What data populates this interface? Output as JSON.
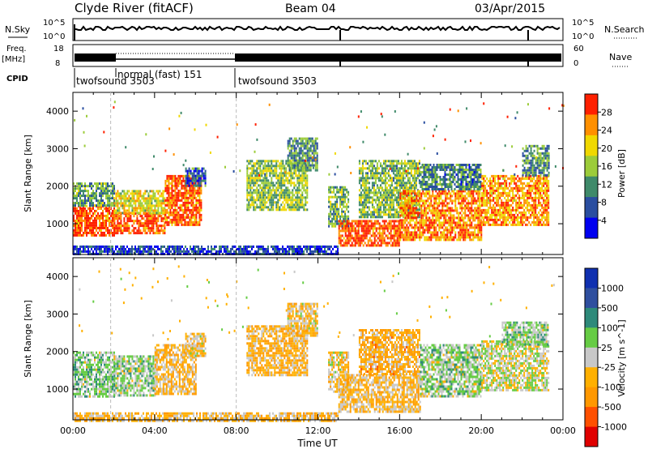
{
  "header": {
    "title": "Clyde River (fitACF)",
    "beam": "Beam 04",
    "date": "03/Apr/2015"
  },
  "top_panels": {
    "nsky_label": "N.Sky",
    "nsky_ticks": [
      "10^5",
      "10^0"
    ],
    "nsearch_label": "N.Search",
    "freq_label": "Freq.",
    "freq_unit": "[MHz]",
    "freq_ticks": [
      "18",
      "8"
    ],
    "nave_label": "Nave",
    "nave_ticks": [
      "60",
      "0"
    ],
    "cpid_label": "CPID",
    "cpid_segments": [
      {
        "label": "twofsound 3503",
        "start_h": 0.0,
        "end_h": 1.85
      },
      {
        "label": "normal (fast) 151",
        "start_h": 1.85,
        "end_h": 8.0
      },
      {
        "label": "twofsound 3503",
        "start_h": 8.0,
        "end_h": 24.0
      }
    ]
  },
  "chart_data": [
    {
      "type": "heatmap",
      "panel": "power",
      "xlabel": "",
      "ylabel": "Slant Range [km]",
      "xlim": [
        0,
        24
      ],
      "ylim": [
        180,
        4500
      ],
      "yticks": [
        1000,
        2000,
        3000,
        4000
      ],
      "colorbar": {
        "label": "Power [dB]",
        "ticks": [
          "28",
          "24",
          "20",
          "16",
          "12",
          "8",
          "4"
        ],
        "range": [
          0,
          30
        ],
        "colors": [
          "#0000f0",
          "#2a4ea0",
          "#3f8a6a",
          "#9ccc3a",
          "#f0d800",
          "#ff9000",
          "#ff2000"
        ]
      },
      "regions": [
        {
          "t0": 0.0,
          "t1": 2.0,
          "r0": 700,
          "r1": 1500,
          "level": 27
        },
        {
          "t0": 0.0,
          "t1": 2.0,
          "r0": 1500,
          "r1": 2100,
          "level": 12
        },
        {
          "t0": 2.0,
          "t1": 4.5,
          "r0": 750,
          "r1": 1300,
          "level": 27
        },
        {
          "t0": 2.0,
          "t1": 4.5,
          "r0": 1300,
          "r1": 1900,
          "level": 18
        },
        {
          "t0": 4.5,
          "t1": 6.3,
          "r0": 1000,
          "r1": 2300,
          "level": 26
        },
        {
          "t0": 5.5,
          "t1": 6.5,
          "r0": 2000,
          "r1": 2500,
          "level": 8
        },
        {
          "t0": 8.5,
          "t1": 11.5,
          "r0": 1400,
          "r1": 2700,
          "level": 15
        },
        {
          "t0": 10.5,
          "t1": 12.0,
          "r0": 2400,
          "r1": 3300,
          "level": 11
        },
        {
          "t0": 12.5,
          "t1": 13.5,
          "r0": 900,
          "r1": 2000,
          "level": 13
        },
        {
          "t0": 13.0,
          "t1": 16.0,
          "r0": 400,
          "r1": 1100,
          "level": 27
        },
        {
          "t0": 14.0,
          "t1": 17.0,
          "r0": 1200,
          "r1": 2700,
          "level": 14
        },
        {
          "t0": 16.0,
          "t1": 20.0,
          "r0": 600,
          "r1": 1900,
          "level": 24
        },
        {
          "t0": 17.0,
          "t1": 20.0,
          "r0": 1900,
          "r1": 2600,
          "level": 10
        },
        {
          "t0": 20.0,
          "t1": 23.3,
          "r0": 1000,
          "r1": 2300,
          "level": 23
        },
        {
          "t0": 22.0,
          "t1": 23.3,
          "r0": 2300,
          "r1": 3100,
          "level": 11
        },
        {
          "t0": 0.0,
          "t1": 13.0,
          "r0": 180,
          "r1": 420,
          "level": 5
        }
      ]
    },
    {
      "type": "heatmap",
      "panel": "velocity",
      "xlabel": "Time UT",
      "ylabel": "Slant Range [km]",
      "xlim": [
        0,
        24
      ],
      "ylim": [
        180,
        4500
      ],
      "yticks": [
        1000,
        2000,
        3000,
        4000
      ],
      "xticks": [
        "00:00",
        "04:00",
        "08:00",
        "12:00",
        "16:00",
        "20:00",
        "00:00"
      ],
      "colorbar": {
        "label": "Velocity [m s^-1]",
        "ticks": [
          "1000",
          "500",
          "100",
          "25",
          "-25",
          "-100",
          "-500",
          "-1000"
        ],
        "range": [
          -1100,
          1100
        ],
        "colors": [
          "#e00000",
          "#ff5000",
          "#ff9800",
          "#ffb000",
          "#c8c8c8",
          "#66cc44",
          "#2e8a7a",
          "#2f4f9f",
          "#1030b0"
        ]
      },
      "regions": [
        {
          "t0": 0.0,
          "t1": 2.0,
          "r0": 800,
          "r1": 2000,
          "level": 180
        },
        {
          "t0": 2.0,
          "t1": 4.0,
          "r0": 800,
          "r1": 1900,
          "level": 140
        },
        {
          "t0": 4.0,
          "t1": 6.0,
          "r0": 900,
          "r1": 2200,
          "level": -220
        },
        {
          "t0": 5.5,
          "t1": 6.5,
          "r0": 1900,
          "r1": 2500,
          "level": -140
        },
        {
          "t0": 8.5,
          "t1": 11.5,
          "r0": 1400,
          "r1": 2700,
          "level": -260
        },
        {
          "t0": 10.5,
          "t1": 12.0,
          "r0": 2400,
          "r1": 3300,
          "level": -180
        },
        {
          "t0": 12.5,
          "t1": 13.5,
          "r0": 900,
          "r1": 2000,
          "level": -150
        },
        {
          "t0": 13.0,
          "t1": 17.0,
          "r0": 400,
          "r1": 1400,
          "level": -200
        },
        {
          "t0": 14.0,
          "t1": 17.0,
          "r0": 1400,
          "r1": 2600,
          "level": -300
        },
        {
          "t0": 17.0,
          "t1": 20.0,
          "r0": 800,
          "r1": 2200,
          "level": 130
        },
        {
          "t0": 20.0,
          "t1": 23.3,
          "r0": 1000,
          "r1": 2300,
          "level": 0
        },
        {
          "t0": 21.0,
          "t1": 23.3,
          "r0": 2200,
          "r1": 2800,
          "level": 180
        },
        {
          "t0": 0.0,
          "t1": 13.0,
          "r0": 180,
          "r1": 380,
          "level": -210
        }
      ]
    }
  ]
}
